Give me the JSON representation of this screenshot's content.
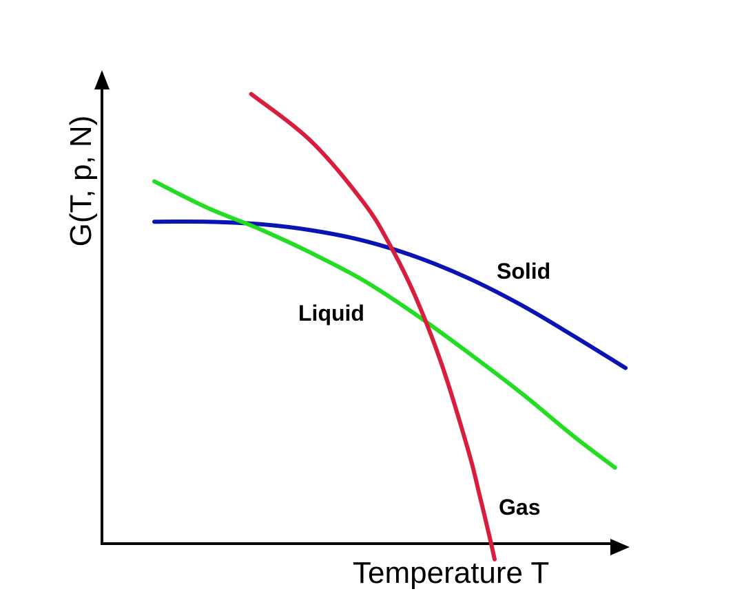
{
  "chart_data": {
    "type": "line",
    "title": "",
    "xlabel": "Temperature T",
    "ylabel": "G(T, p, N)",
    "xlim": [
      0,
      100
    ],
    "ylim": [
      0,
      100
    ],
    "ticks": "none",
    "grid": false,
    "legend": "inline labels",
    "series": [
      {
        "name": "Solid",
        "color": "#0a14b4",
        "x": [
          10,
          20,
          30,
          40,
          50,
          60,
          70,
          80,
          90,
          100
        ],
        "y": [
          67.8,
          67.8,
          67.3,
          66.0,
          63.8,
          60.4,
          55.9,
          50.3,
          43.8,
          37.0
        ]
      },
      {
        "name": "Liquid",
        "color": "#22dd22",
        "x": [
          10,
          20,
          30,
          40,
          50,
          60,
          70,
          80,
          90,
          98
        ],
        "y": [
          76.3,
          70.8,
          66.3,
          61.2,
          55.4,
          48.2,
          40.2,
          31.8,
          22.7,
          16.0
        ]
      },
      {
        "name": "Gas",
        "color": "#d81e3c",
        "x": [
          28.5,
          40,
          50,
          55,
          60,
          65,
          70,
          72,
          74,
          75
        ],
        "y": [
          94.7,
          84.7,
          71.8,
          62.9,
          51.7,
          37.4,
          19.5,
          10.8,
          1.6,
          -3.3
        ]
      }
    ]
  }
}
